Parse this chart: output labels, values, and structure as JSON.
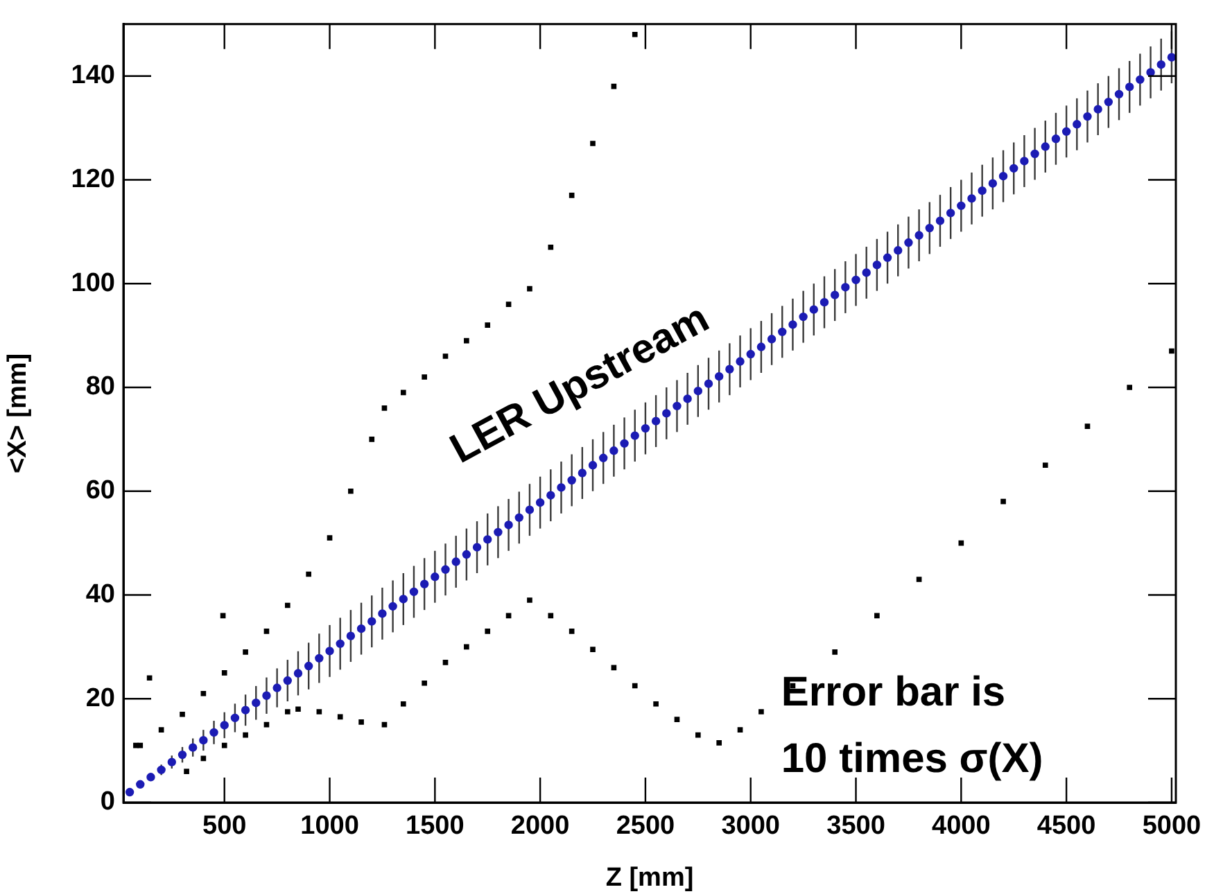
{
  "chart_data": {
    "type": "scatter",
    "xlabel": "Z [mm]",
    "ylabel": "<X> [mm]",
    "xlim": [
      20,
      5020
    ],
    "xticks": [
      500,
      1000,
      1500,
      2000,
      2500,
      3000,
      3500,
      4000,
      4500,
      5000
    ],
    "ylim": [
      0,
      150
    ],
    "yticks": [
      0,
      20,
      40,
      60,
      80,
      100,
      120,
      140
    ],
    "annotations": [
      "LER Upstream",
      "Error bar is\n10 times σ(X)"
    ],
    "series": [
      {
        "color": "#1c1cb4",
        "marker": "circle",
        "x": [
          50,
          100,
          150,
          200,
          250,
          300,
          350,
          400,
          450,
          500,
          550,
          600,
          650,
          700,
          750,
          800,
          850,
          900,
          950,
          1000,
          1050,
          1100,
          1150,
          1200,
          1250,
          1300,
          1350,
          1400,
          1450,
          1500,
          1550,
          1600,
          1650,
          1700,
          1750,
          1800,
          1850,
          1900,
          1950,
          2000,
          2050,
          2100,
          2150,
          2200,
          2250,
          2300,
          2350,
          2400,
          2450,
          2500,
          2550,
          2600,
          2650,
          2700,
          2750,
          2800,
          2850,
          2900,
          2950,
          3000,
          3050,
          3100,
          3150,
          3200,
          3250,
          3300,
          3350,
          3400,
          3450,
          3500,
          3550,
          3600,
          3650,
          3700,
          3750,
          3800,
          3850,
          3900,
          3950,
          4000,
          4050,
          4100,
          4150,
          4200,
          4250,
          4300,
          4350,
          4400,
          4450,
          4500,
          4550,
          4600,
          4650,
          4700,
          4750,
          4800,
          4850,
          4900,
          4950,
          5000
        ],
        "values": [
          2.0,
          3.5,
          4.9,
          6.3,
          7.8,
          9.2,
          10.6,
          12.0,
          13.5,
          14.9,
          16.3,
          17.8,
          19.2,
          20.6,
          22.1,
          23.5,
          24.9,
          26.3,
          27.8,
          29.2,
          30.6,
          32.1,
          33.5,
          34.9,
          36.4,
          37.8,
          39.2,
          40.6,
          42.1,
          43.5,
          44.9,
          46.4,
          47.8,
          49.2,
          50.7,
          52.1,
          53.5,
          54.9,
          56.4,
          57.8,
          59.2,
          60.7,
          62.1,
          63.5,
          65.0,
          66.4,
          67.8,
          69.2,
          70.7,
          72.1,
          73.5,
          75.0,
          76.4,
          77.8,
          79.3,
          80.7,
          82.1,
          83.5,
          85.0,
          86.4,
          87.8,
          89.3,
          90.7,
          92.1,
          93.6,
          95.0,
          96.4,
          97.8,
          99.3,
          100.7,
          102.1,
          103.6,
          105.0,
          106.4,
          107.9,
          109.3,
          110.7,
          112.1,
          113.6,
          115.0,
          116.4,
          117.9,
          119.3,
          120.7,
          122.2,
          123.6,
          125.0,
          126.4,
          127.9,
          129.3,
          130.7,
          132.2,
          133.6,
          135.0,
          136.5,
          137.9,
          139.3,
          140.7,
          142.2,
          143.6
        ],
        "errors": [
          null,
          null,
          null,
          1,
          1.25,
          1.5,
          1.75,
          2,
          2.25,
          2.5,
          2.75,
          3,
          3.25,
          3.5,
          3.75,
          4,
          4.25,
          4.5,
          4.75,
          5,
          5,
          5,
          5,
          5,
          5,
          5,
          5,
          5,
          5,
          5,
          5,
          5,
          5,
          5,
          5,
          5,
          5,
          5,
          5,
          5,
          5,
          5,
          5,
          5,
          5,
          5,
          5,
          5,
          5,
          5,
          5,
          5,
          5,
          5,
          5,
          5,
          5,
          5,
          5,
          5,
          5,
          5,
          5,
          5,
          5,
          5,
          5,
          5,
          5,
          5,
          5,
          5,
          5,
          5,
          5,
          5,
          5,
          5,
          5,
          5,
          5,
          5,
          5,
          5,
          5,
          5,
          5,
          5,
          5,
          5,
          5,
          5,
          5,
          5,
          5,
          5,
          5,
          5,
          5,
          5
        ]
      },
      {
        "color": "#000000",
        "marker": "square",
        "x": [
          100,
          200,
          300,
          400,
          500,
          600,
          700,
          800,
          900,
          1000,
          1100,
          1200,
          1260,
          1350,
          1450,
          1550,
          1650,
          1750,
          1850,
          1950,
          2050,
          2150,
          2250,
          2350,
          2450
        ],
        "values": [
          11,
          14,
          17,
          21,
          25,
          29,
          33,
          38,
          44,
          51,
          60,
          70,
          76,
          79,
          82,
          86,
          89,
          92,
          96,
          99,
          107,
          117,
          127,
          138,
          148
        ]
      },
      {
        "color": "#000000",
        "marker": "square",
        "x": [
          320,
          400,
          500,
          600,
          700,
          800,
          850,
          950,
          1050,
          1150,
          1260,
          1350,
          1450,
          1550,
          1650,
          1750,
          1850,
          1950,
          2050,
          2150,
          2250,
          2350,
          2450,
          2550,
          2650,
          2750,
          2850,
          2950,
          3050,
          3200,
          3400,
          3600,
          3800,
          4000,
          4200,
          4400,
          4600,
          4800,
          5000
        ],
        "values": [
          6,
          8.5,
          11,
          13,
          15,
          17.5,
          18,
          17.5,
          16.5,
          15.5,
          15,
          19,
          23,
          27,
          30,
          33,
          36,
          39,
          36,
          33,
          29.5,
          26,
          22.5,
          19,
          16,
          13,
          11.5,
          14,
          17.5,
          22.5,
          29,
          36,
          43,
          50,
          58,
          65,
          72.5,
          80,
          87
        ]
      },
      {
        "color": "#000000",
        "marker": "square",
        "x": [
          79,
          144,
          493
        ],
        "values": [
          11,
          24,
          36
        ]
      }
    ]
  }
}
